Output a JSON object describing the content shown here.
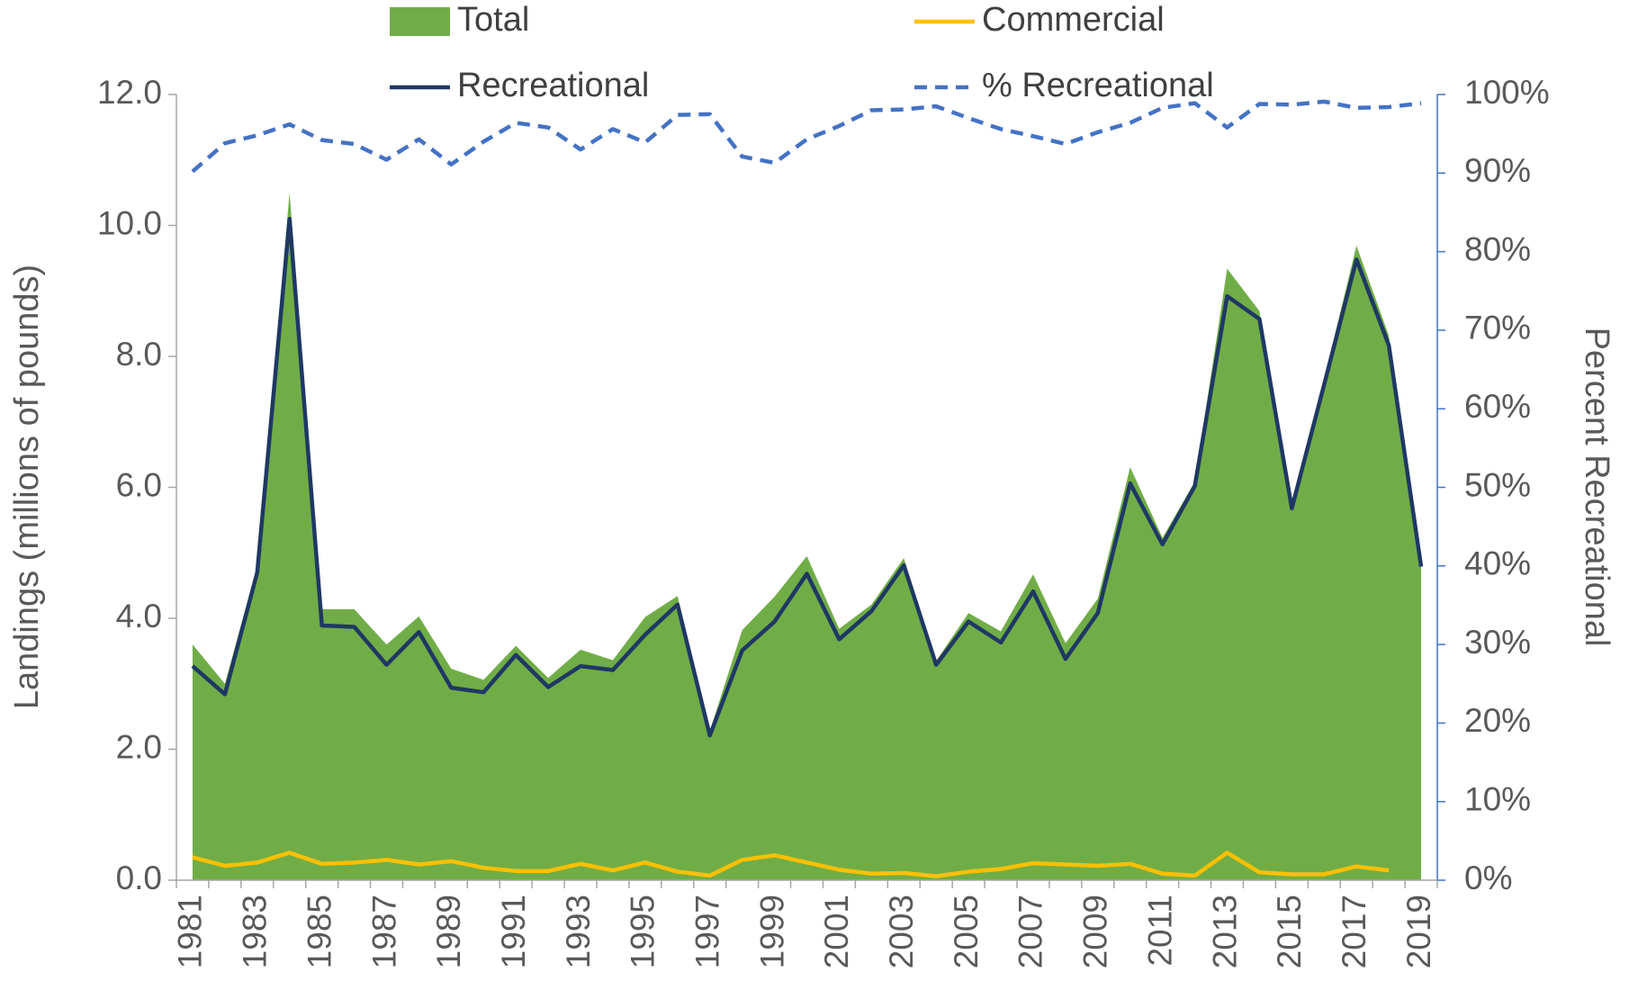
{
  "chart_data": {
    "type": "line",
    "categories": [
      "1981",
      null,
      "1983",
      null,
      "1985",
      null,
      "1987",
      null,
      "1989",
      null,
      "1991",
      null,
      "1993",
      null,
      "1995",
      null,
      "1997",
      null,
      "1999",
      null,
      "2001",
      null,
      "2003",
      null,
      "2005",
      null,
      "2007",
      null,
      "2009",
      null,
      "2011",
      null,
      "2013",
      null,
      "2015",
      null,
      "2017",
      null,
      "2019"
    ],
    "y_label": "Landings (millions of pounds)",
    "y2_label": "Percent Recreational",
    "ylim": [
      0,
      12
    ],
    "yticks": [
      {
        "value": 0,
        "label": "0.0"
      },
      {
        "value": 2,
        "label": "2.0"
      },
      {
        "value": 4,
        "label": "4.0"
      },
      {
        "value": 6,
        "label": "6.0"
      },
      {
        "value": 8,
        "label": "8.0"
      },
      {
        "value": 10,
        "label": "10.0"
      },
      {
        "value": 12,
        "label": "12.0"
      }
    ],
    "y2lim": [
      0,
      100
    ],
    "y2ticks": [
      {
        "value": 0,
        "label": "0%"
      },
      {
        "value": 10,
        "label": "10%"
      },
      {
        "value": 20,
        "label": "20%"
      },
      {
        "value": 30,
        "label": "30%"
      },
      {
        "value": 40,
        "label": "40%"
      },
      {
        "value": 50,
        "label": "50%"
      },
      {
        "value": 60,
        "label": "60%"
      },
      {
        "value": 70,
        "label": "70%"
      },
      {
        "value": 80,
        "label": "80%"
      },
      {
        "value": 90,
        "label": "90%"
      },
      {
        "value": 100,
        "label": "100%"
      }
    ],
    "grid": false,
    "series": [
      {
        "name": "Total",
        "color": "#70ad47",
        "mark": "area",
        "values": [
          3.6,
          3.0,
          4.8,
          10.5,
          4.14,
          4.14,
          3.6,
          4.03,
          3.23,
          3.06,
          3.58,
          3.09,
          3.52,
          3.36,
          4.02,
          4.34,
          2.28,
          3.82,
          4.33,
          4.95,
          3.84,
          4.21,
          4.92,
          3.35,
          4.08,
          3.8,
          4.67,
          3.62,
          4.3,
          6.31,
          5.23,
          6.09,
          9.34,
          8.69,
          5.77,
          7.66,
          9.69,
          8.32,
          4.79
        ]
      },
      {
        "name": "Commercial",
        "color": "#ffc000",
        "mark": "line",
        "values": [
          0.35,
          0.22,
          0.27,
          0.42,
          0.25,
          0.27,
          0.31,
          0.24,
          0.29,
          0.19,
          0.14,
          0.14,
          0.25,
          0.15,
          0.27,
          0.13,
          0.07,
          0.31,
          0.38,
          0.27,
          0.16,
          0.1,
          0.11,
          0.06,
          0.13,
          0.17,
          0.26,
          0.24,
          0.22,
          0.25,
          0.1,
          0.07,
          0.42,
          0.12,
          0.09,
          0.09,
          0.21,
          0.15,
          null
        ]
      },
      {
        "name": "Recreational",
        "color": "#1f3864",
        "mark": "line",
        "values": [
          3.27,
          2.84,
          4.7,
          10.1,
          3.89,
          3.87,
          3.29,
          3.79,
          2.94,
          2.87,
          3.44,
          2.95,
          3.27,
          3.21,
          3.75,
          4.21,
          2.21,
          3.51,
          3.95,
          4.68,
          3.68,
          4.11,
          4.81,
          3.29,
          3.95,
          3.63,
          4.41,
          3.38,
          4.08,
          6.06,
          5.13,
          6.02,
          8.92,
          8.57,
          5.68,
          7.57,
          9.48,
          8.17,
          4.79
        ]
      },
      {
        "name": "% Recreational",
        "color": "#4472c4",
        "mark": "line",
        "dashed": true,
        "axis": "y2",
        "values": [
          90.2,
          93.8,
          94.8,
          96.2,
          94.2,
          93.7,
          91.7,
          94.3,
          91.1,
          94.0,
          96.4,
          95.8,
          93.0,
          95.6,
          93.9,
          97.4,
          97.5,
          92.1,
          91.3,
          94.3,
          96.0,
          98.0,
          98.1,
          98.5,
          97.0,
          95.6,
          94.7,
          93.7,
          95.2,
          96.4,
          98.3,
          98.9,
          95.8,
          98.8,
          98.7,
          99.1,
          98.3,
          98.4,
          98.9
        ]
      }
    ]
  }
}
